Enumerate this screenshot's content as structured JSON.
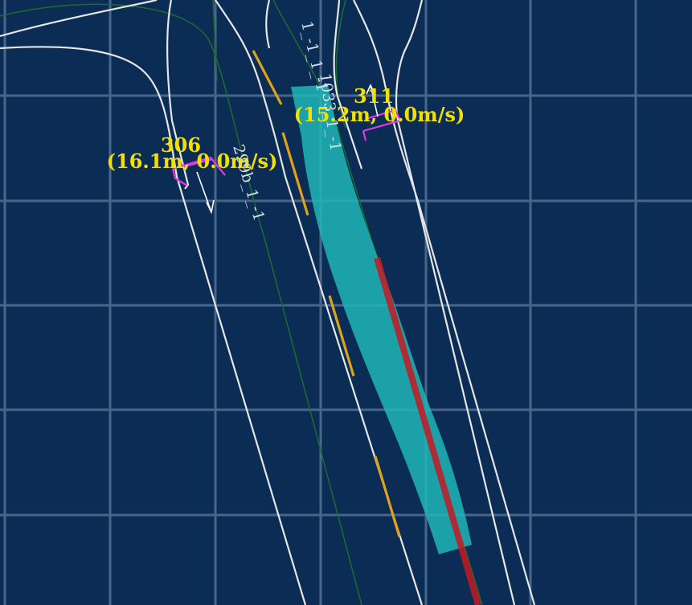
{
  "map": {
    "colors": {
      "background": "#0b2d55",
      "grid": "#5d7a9c",
      "lane_boundary": "#e6e6e6",
      "lane_center": "#1e6b2f",
      "yellow_dash": "#e0a21a",
      "planned_path": "#1fb6b6",
      "reference_line": "#c21b22",
      "obstacle_box": "#e23be6",
      "label": "#f3e000"
    },
    "obstacles": [
      {
        "id": "306",
        "info": "(16.1m, 0.0m/s)"
      },
      {
        "id": "311",
        "info": "(15.2m, 0.0m/s)"
      }
    ],
    "lane_labels": [
      {
        "text": "299b_1_-1"
      },
      {
        "text": "1_-1_1_-1"
      },
      {
        "text": "1033_1_-1"
      }
    ]
  }
}
